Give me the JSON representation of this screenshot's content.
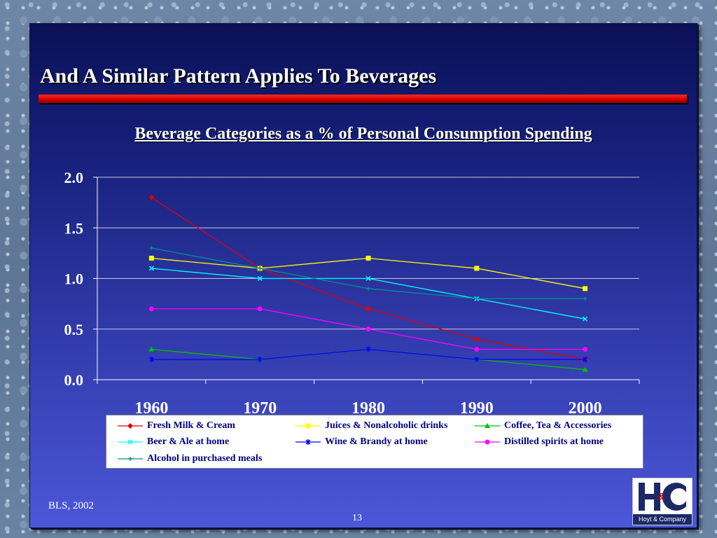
{
  "slide": {
    "title": "And A Similar Pattern Applies To Beverages",
    "source": "BLS, 2002",
    "page_number": "13",
    "logo_text": "Hoyt & Company",
    "logo_amp": "&"
  },
  "colors": {
    "slide_bg_top": "#0b1056",
    "slide_bg_bottom": "#4c57d8",
    "title_bar": "#d00000"
  },
  "chart_data": {
    "type": "line",
    "title": "Beverage Categories as a % of Personal Consumption Spending",
    "xlabel": "",
    "ylabel": "",
    "categories": [
      "1960",
      "1970",
      "1980",
      "1990",
      "2000"
    ],
    "ylim": [
      0,
      2
    ],
    "yticks": [
      "0.0",
      "0.5",
      "1.0",
      "1.5",
      "2.0"
    ],
    "grid": true,
    "legend_position": "bottom",
    "series": [
      {
        "name": "Fresh Milk & Cream",
        "values": [
          1.8,
          1.1,
          0.7,
          0.4,
          0.2
        ],
        "color": "#e00000",
        "marker": "diamond"
      },
      {
        "name": "Juices & Nonalcoholic drinks",
        "values": [
          1.2,
          1.1,
          1.2,
          1.1,
          0.9
        ],
        "color": "#ffff00",
        "marker": "square"
      },
      {
        "name": "Coffee, Tea & Accessories",
        "values": [
          0.3,
          0.2,
          0.3,
          0.2,
          0.1
        ],
        "color": "#00c000",
        "marker": "triangle"
      },
      {
        "name": "Beer & Ale at home",
        "values": [
          1.1,
          1.0,
          1.0,
          0.8,
          0.6
        ],
        "color": "#00ffff",
        "marker": "x"
      },
      {
        "name": "Wine & Brandy at home",
        "values": [
          0.2,
          0.2,
          0.3,
          0.2,
          0.2
        ],
        "color": "#0000ff",
        "marker": "star"
      },
      {
        "name": "Distilled spirits at home",
        "values": [
          0.7,
          0.7,
          0.5,
          0.3,
          0.3
        ],
        "color": "#ff00ff",
        "marker": "circle"
      },
      {
        "name": "Alcohol in purchased meals",
        "values": [
          1.3,
          1.1,
          0.9,
          0.8,
          0.8
        ],
        "color": "#009090",
        "marker": "plus"
      }
    ]
  }
}
